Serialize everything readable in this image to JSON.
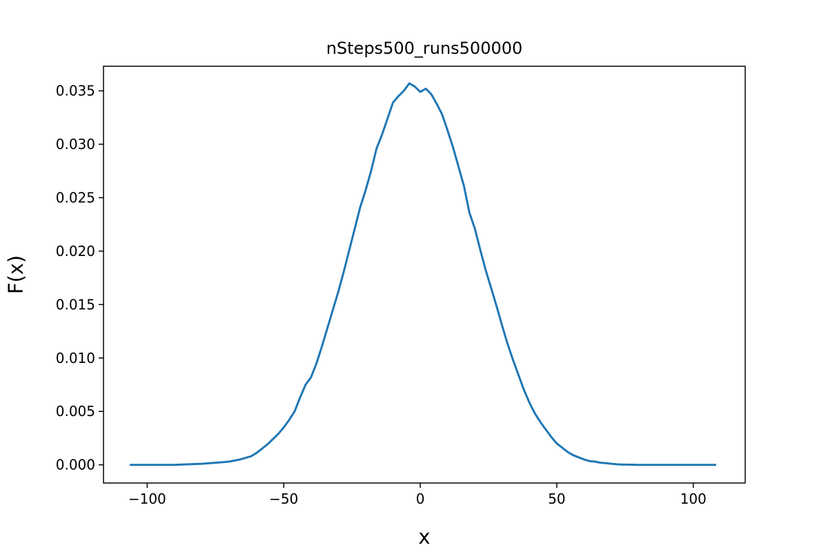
{
  "chart_data": {
    "type": "line",
    "title": "nSteps500_runs500000",
    "xlabel": "x",
    "ylabel": "F(x)",
    "xlim": [
      -116,
      119
    ],
    "ylim": [
      -0.0017,
      0.0373
    ],
    "x_ticks": [
      -100,
      -50,
      0,
      50,
      100
    ],
    "x_tick_labels": [
      "−100",
      "−50",
      "0",
      "50",
      "100"
    ],
    "y_ticks": [
      0.0,
      0.005,
      0.01,
      0.015,
      0.02,
      0.025,
      0.03,
      0.035
    ],
    "y_tick_labels": [
      "0.000",
      "0.005",
      "0.010",
      "0.015",
      "0.020",
      "0.025",
      "0.030",
      "0.035"
    ],
    "grid": false,
    "legend": "none",
    "series": [
      {
        "color": "#1f77b4",
        "x": [
          -106,
          -100,
          -95,
          -90,
          -85,
          -80,
          -75,
          -72,
          -70,
          -68,
          -66,
          -64,
          -62,
          -60,
          -58,
          -56,
          -54,
          -52,
          -50,
          -48,
          -46,
          -44,
          -42,
          -40,
          -38,
          -36,
          -34,
          -32,
          -30,
          -28,
          -26,
          -24,
          -22,
          -20,
          -18,
          -16,
          -14,
          -12,
          -10,
          -8,
          -6,
          -4,
          -2,
          0,
          2,
          4,
          6,
          8,
          10,
          12,
          14,
          16,
          18,
          20,
          22,
          24,
          26,
          28,
          30,
          32,
          34,
          36,
          38,
          40,
          42,
          44,
          46,
          48,
          50,
          52,
          54,
          56,
          58,
          60,
          62,
          64,
          66,
          68,
          70,
          72,
          74,
          76,
          78,
          80,
          84,
          88,
          92,
          96,
          100,
          104,
          108
        ],
        "y": [
          0.0,
          0.0,
          0.0,
          0.0,
          5e-05,
          0.0001,
          0.0002,
          0.00025,
          0.0003,
          0.0004,
          0.0005,
          0.00065,
          0.0008,
          0.0011,
          0.0015,
          0.0019,
          0.0024,
          0.0029,
          0.0035,
          0.0042,
          0.005,
          0.0063,
          0.0075,
          0.0082,
          0.0095,
          0.0111,
          0.0128,
          0.0145,
          0.0162,
          0.0181,
          0.0201,
          0.0221,
          0.0241,
          0.0257,
          0.0275,
          0.0296,
          0.0309,
          0.0324,
          0.0339,
          0.0345,
          0.035,
          0.0357,
          0.0354,
          0.0349,
          0.0352,
          0.0347,
          0.0338,
          0.0328,
          0.0313,
          0.0297,
          0.0279,
          0.0261,
          0.0236,
          0.0221,
          0.0201,
          0.0182,
          0.0165,
          0.0148,
          0.013,
          0.0113,
          0.0098,
          0.0084,
          0.007,
          0.0058,
          0.0048,
          0.004,
          0.0033,
          0.0026,
          0.002,
          0.0016,
          0.0012,
          0.0009,
          0.0007,
          0.0005,
          0.00035,
          0.0003,
          0.0002,
          0.00015,
          0.0001,
          5e-05,
          3e-05,
          2e-05,
          1e-05,
          0.0,
          0.0,
          0.0,
          0.0,
          0.0,
          0.0,
          0.0,
          0.0
        ]
      }
    ]
  }
}
